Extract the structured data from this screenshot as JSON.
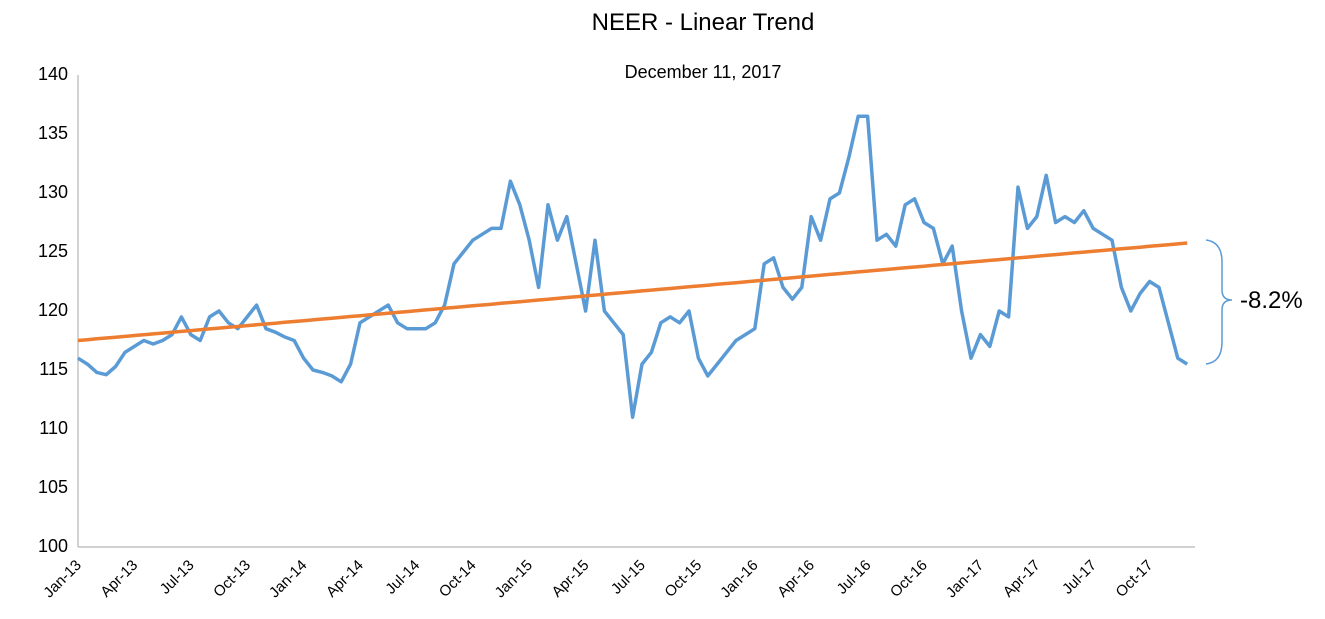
{
  "chart_data": {
    "type": "line",
    "title": "NEER - Linear Trend",
    "subtitle": "December 11, 2017",
    "annotation": "-8.2%",
    "categories": [
      "Jan-13",
      null,
      null,
      null,
      null,
      null,
      "Apr-13",
      null,
      null,
      null,
      null,
      null,
      "Jul-13",
      null,
      null,
      null,
      null,
      null,
      "Oct-13",
      null,
      null,
      null,
      null,
      null,
      "Jan-14",
      null,
      null,
      null,
      null,
      null,
      "Apr-14",
      null,
      null,
      null,
      null,
      null,
      "Jul-14",
      null,
      null,
      null,
      null,
      null,
      "Oct-14",
      null,
      null,
      null,
      null,
      null,
      "Jan-15",
      null,
      null,
      null,
      null,
      null,
      "Apr-15",
      null,
      null,
      null,
      null,
      null,
      "Jul-15",
      null,
      null,
      null,
      null,
      null,
      "Oct-15",
      null,
      null,
      null,
      null,
      null,
      "Jan-16",
      null,
      null,
      null,
      null,
      null,
      "Apr-16",
      null,
      null,
      null,
      null,
      null,
      "Jul-16",
      null,
      null,
      null,
      null,
      null,
      "Oct-16",
      null,
      null,
      null,
      null,
      null,
      "Jan-17",
      null,
      null,
      null,
      null,
      null,
      "Apr-17",
      null,
      null,
      null,
      null,
      null,
      "Jul-17",
      null,
      null,
      null,
      null,
      null,
      "Oct-17",
      null,
      null,
      null,
      null
    ],
    "series": [
      {
        "color": "#5b9bd5",
        "values": [
          116,
          115.5,
          114.8,
          114.6,
          115.3,
          116.5,
          117,
          117.5,
          117.2,
          117.5,
          118,
          119.5,
          118,
          117.5,
          119.5,
          120,
          119,
          118.5,
          119.5,
          120.5,
          118.5,
          118.2,
          117.8,
          117.5,
          116,
          115,
          114.8,
          114.5,
          114,
          115.5,
          119,
          119.5,
          120,
          120.5,
          119,
          118.5,
          118.5,
          118.5,
          119,
          120.5,
          124,
          125,
          126,
          126.5,
          127,
          127,
          131,
          129,
          126,
          122,
          129,
          126,
          128,
          124,
          120,
          126,
          120,
          119,
          118,
          111,
          115.5,
          116.5,
          119,
          119.5,
          119,
          120,
          116,
          114.5,
          115.5,
          116.5,
          117.5,
          118,
          118.5,
          124,
          124.5,
          122,
          121,
          122,
          128,
          126,
          129.5,
          130,
          133,
          136.5,
          136.5,
          126,
          126.5,
          125.5,
          129,
          129.5,
          127.5,
          127,
          124,
          125.5,
          120,
          116,
          118,
          117,
          120,
          119.5,
          130.5,
          127,
          128,
          131.5,
          127.5,
          128,
          127.5,
          128.5,
          127,
          126.5,
          126,
          122,
          120,
          121.5,
          122.5,
          122,
          119,
          116,
          115.5
        ]
      },
      {
        "color": "#ed7d31",
        "values": [
          117.5,
          117.57,
          117.64,
          117.71,
          117.78,
          117.85,
          117.92,
          117.99,
          118.06,
          118.13,
          118.2,
          118.27,
          118.34,
          118.41,
          118.48,
          118.55,
          118.62,
          118.69,
          118.76,
          118.83,
          118.9,
          118.97,
          119.04,
          119.11,
          119.18,
          119.25,
          119.32,
          119.39,
          119.46,
          119.53,
          119.6,
          119.67,
          119.74,
          119.81,
          119.88,
          119.95,
          120.02,
          120.09,
          120.16,
          120.23,
          120.3,
          120.37,
          120.44,
          120.51,
          120.58,
          120.65,
          120.72,
          120.79,
          120.86,
          120.93,
          121,
          121.07,
          121.14,
          121.21,
          121.28,
          121.35,
          121.42,
          121.49,
          121.56,
          121.63,
          121.7,
          121.77,
          121.84,
          121.91,
          121.98,
          122.05,
          122.12,
          122.19,
          122.26,
          122.33,
          122.4,
          122.47,
          122.54,
          122.61,
          122.68,
          122.75,
          122.82,
          122.89,
          122.96,
          123.03,
          123.1,
          123.17,
          123.24,
          123.31,
          123.38,
          123.45,
          123.52,
          123.59,
          123.66,
          123.73,
          123.8,
          123.87,
          123.94,
          124.01,
          124.08,
          124.15,
          124.22,
          124.29,
          124.36,
          124.43,
          124.5,
          124.57,
          124.64,
          124.71,
          124.78,
          124.85,
          124.92,
          124.99,
          125.06,
          125.13,
          125.2,
          125.27,
          125.34,
          125.41,
          125.48,
          125.55,
          125.62,
          125.69,
          125.76
        ]
      }
    ],
    "ylim": [
      100,
      140
    ],
    "yticks": [
      100,
      105,
      110,
      115,
      120,
      125,
      130,
      135,
      140
    ],
    "grid": false
  }
}
